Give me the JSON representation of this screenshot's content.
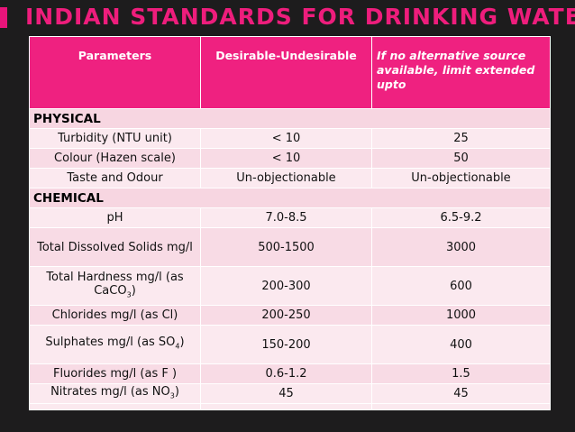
{
  "title": "INDIAN STANDARDS FOR DRINKING WATER",
  "columns": [
    "Parameters",
    "Desirable-Undesirable",
    "If no alternative source available, limit extended upto"
  ],
  "sections": {
    "physical": "PHYSICAL",
    "chemical": "CHEMICAL"
  },
  "rows": {
    "turbidity": [
      "Turbidity (NTU unit)",
      "< 10",
      "25"
    ],
    "colour": [
      "Colour (Hazen scale)",
      "< 10",
      "50"
    ],
    "taste": [
      "Taste and Odour",
      "Un-objectionable",
      "Un-objectionable"
    ],
    "ph": [
      "pH",
      "7.0-8.5",
      "6.5-9.2"
    ],
    "tds": [
      "Total Dissolved Solids mg/l",
      "500-1500",
      "3000"
    ],
    "hardness": [
      "Total Hardness mg/l (as CaCO",
      "3",
      ")",
      "200-300",
      "600"
    ],
    "chlorides": [
      "Chlorides mg/l (as Cl)",
      "200-250",
      "1000"
    ],
    "sulphates": [
      "Sulphates mg/l (as SO",
      "4",
      ")",
      "150-200",
      "400"
    ],
    "fluorides": [
      "Fluorides mg/l (as F )",
      "0.6-1.2",
      "1.5"
    ],
    "nitrates": [
      "Nitrates mg/l (as NO",
      "3",
      ")",
      "45",
      "45"
    ]
  },
  "colors": {
    "title": "#ee1d7c",
    "header_bg": "#ef2180",
    "section_bg": "#f7d6e1",
    "row_bg": "#fbe9ef",
    "background": "#1d1c1d"
  }
}
